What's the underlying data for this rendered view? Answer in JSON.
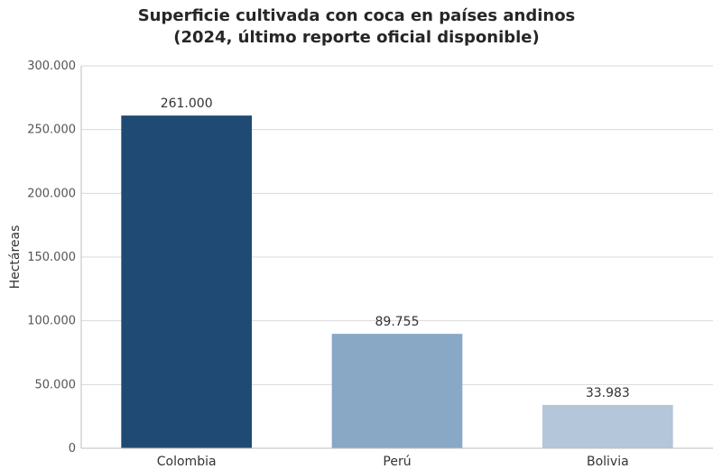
{
  "chart_data": {
    "type": "bar",
    "title": "Superficie cultivada con coca en países andinos",
    "subtitle": "(2024, último reporte oficial disponible)",
    "xlabel": "",
    "ylabel": "Hectáreas",
    "categories": [
      "Colombia",
      "Perú",
      "Bolivia"
    ],
    "values": [
      261000,
      89755,
      33983
    ],
    "value_labels": [
      "261.000",
      "89.755",
      "33.983"
    ],
    "bar_colors": [
      "#1f4a73",
      "#89a8c6",
      "#b4c6d9"
    ],
    "ylim": [
      0,
      300000
    ],
    "yticks": [
      0,
      50000,
      100000,
      150000,
      200000,
      250000,
      300000
    ],
    "ytick_labels": [
      "0",
      "50.000",
      "100.000",
      "150.000",
      "200.000",
      "250.000",
      "300.000"
    ],
    "grid": "horizontal",
    "legend": "none"
  }
}
